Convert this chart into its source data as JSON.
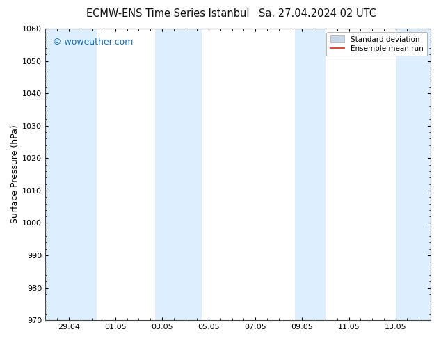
{
  "title_left": "ECMW-ENS Time Series Istanbul",
  "title_right": "Sa. 27.04.2024 02 UTC",
  "ylabel": "Surface Pressure (hPa)",
  "ylim": [
    970,
    1060
  ],
  "yticks": [
    970,
    980,
    990,
    1000,
    1010,
    1020,
    1030,
    1040,
    1050,
    1060
  ],
  "xlim": [
    0.0,
    16.5
  ],
  "xtick_labels": [
    "29.04",
    "01.05",
    "03.05",
    "05.05",
    "07.05",
    "09.05",
    "11.05",
    "13.05"
  ],
  "xtick_positions": [
    1.0,
    3.0,
    5.0,
    7.0,
    9.0,
    11.0,
    13.0,
    15.0
  ],
  "shaded_bands": [
    {
      "x_start": 0.0,
      "x_end": 1.5
    },
    {
      "x_start": 1.5,
      "x_end": 2.2
    },
    {
      "x_start": 4.7,
      "x_end": 5.3
    },
    {
      "x_start": 5.3,
      "x_end": 6.7
    },
    {
      "x_start": 10.7,
      "x_end": 11.3
    },
    {
      "x_start": 11.3,
      "x_end": 12.0
    },
    {
      "x_start": 15.0,
      "x_end": 16.5
    }
  ],
  "band_color": "#ddeeff",
  "background_color": "#ffffff",
  "watermark_text": "© woweather.com",
  "watermark_color": "#1a6eb5",
  "legend_std_label": "Standard deviation",
  "legend_mean_label": "Ensemble mean run",
  "legend_std_color": "#c8d8e8",
  "legend_std_edge": "#aaaaaa",
  "legend_mean_color": "#dd2222",
  "title_fontsize": 10.5,
  "tick_fontsize": 8,
  "ylabel_fontsize": 9,
  "watermark_fontsize": 9,
  "legend_fontsize": 7.5,
  "axis_color": "#444444"
}
